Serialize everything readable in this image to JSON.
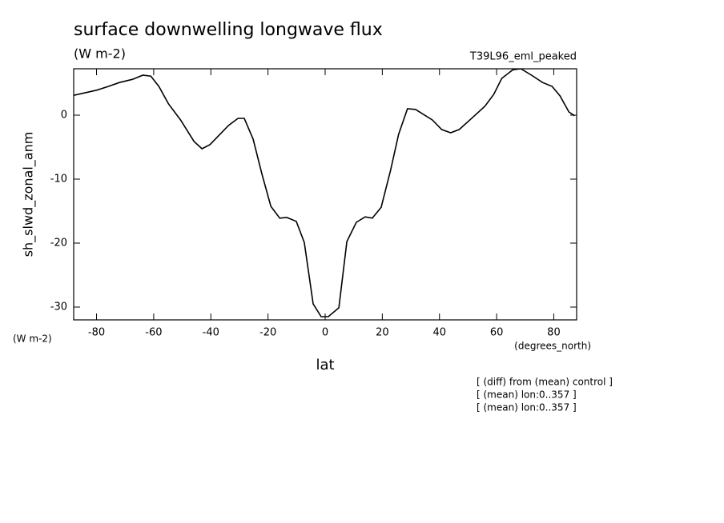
{
  "chart_data": {
    "type": "line",
    "title": "surface downwelling longwave flux",
    "subtitle": "(W m-2)",
    "dataset": "T39L96_eml_peaked",
    "y_label": "sh_slwd_zonal_anm",
    "y_units": "(W m-2)",
    "x_units": "(degrees_north)",
    "x_label": "lat",
    "notes": [
      "[ (diff) from (mean) control ]",
      "[ (mean) lon:0..357 ]",
      "[ (mean) lon:0..357 ]"
    ],
    "x": [
      -88,
      -80,
      -75.8,
      -72,
      -67.4,
      -63.8,
      -61,
      -58.2,
      -54.8,
      -50.6,
      -45.9,
      -43.1,
      -40.3,
      -33.8,
      -30.5,
      -28.3,
      -25.2,
      -22.1,
      -19,
      -15.9,
      -13.4,
      -10.1,
      -7.3,
      -4.2,
      -1.4,
      1.1,
      4.8,
      7.6,
      10.9,
      14,
      16.5,
      19.6,
      22.9,
      25.7,
      28.8,
      31.6,
      37.5,
      40.8,
      43.9,
      46.9,
      51.5,
      55.9,
      59,
      61.8,
      65.7,
      68.5,
      72.2,
      76.1,
      79.4,
      82.2,
      85.3,
      87.3
    ],
    "series": [
      {
        "name": "sh_slwd_zonal_anm",
        "color": "#000000",
        "values": [
          3.1,
          3.9,
          4.5,
          5.1,
          5.6,
          6.25,
          6.1,
          4.5,
          1.75,
          -0.75,
          -4.1,
          -5.25,
          -4.6,
          -1.6,
          -0.5,
          -0.5,
          -3.75,
          -9.25,
          -14.25,
          -16.1,
          -16,
          -16.6,
          -19.9,
          -29.5,
          -31.5,
          -31.5,
          -30.1,
          -19.75,
          -16.75,
          -15.9,
          -16.1,
          -14.4,
          -8.6,
          -3,
          1,
          0.9,
          -0.75,
          -2.25,
          -2.75,
          -2.25,
          -0.4,
          1.4,
          3.25,
          5.75,
          7.1,
          7.25,
          6.25,
          5.1,
          4.5,
          3,
          0.5,
          -0.1
        ]
      }
    ],
    "xlim": [
      -88,
      88
    ],
    "ylim": [
      -32,
      7.25
    ],
    "xticks": [
      -80,
      -60,
      -40,
      -20,
      0,
      20,
      40,
      60,
      80
    ],
    "yticks": [
      -30,
      -20,
      -10,
      0
    ]
  }
}
